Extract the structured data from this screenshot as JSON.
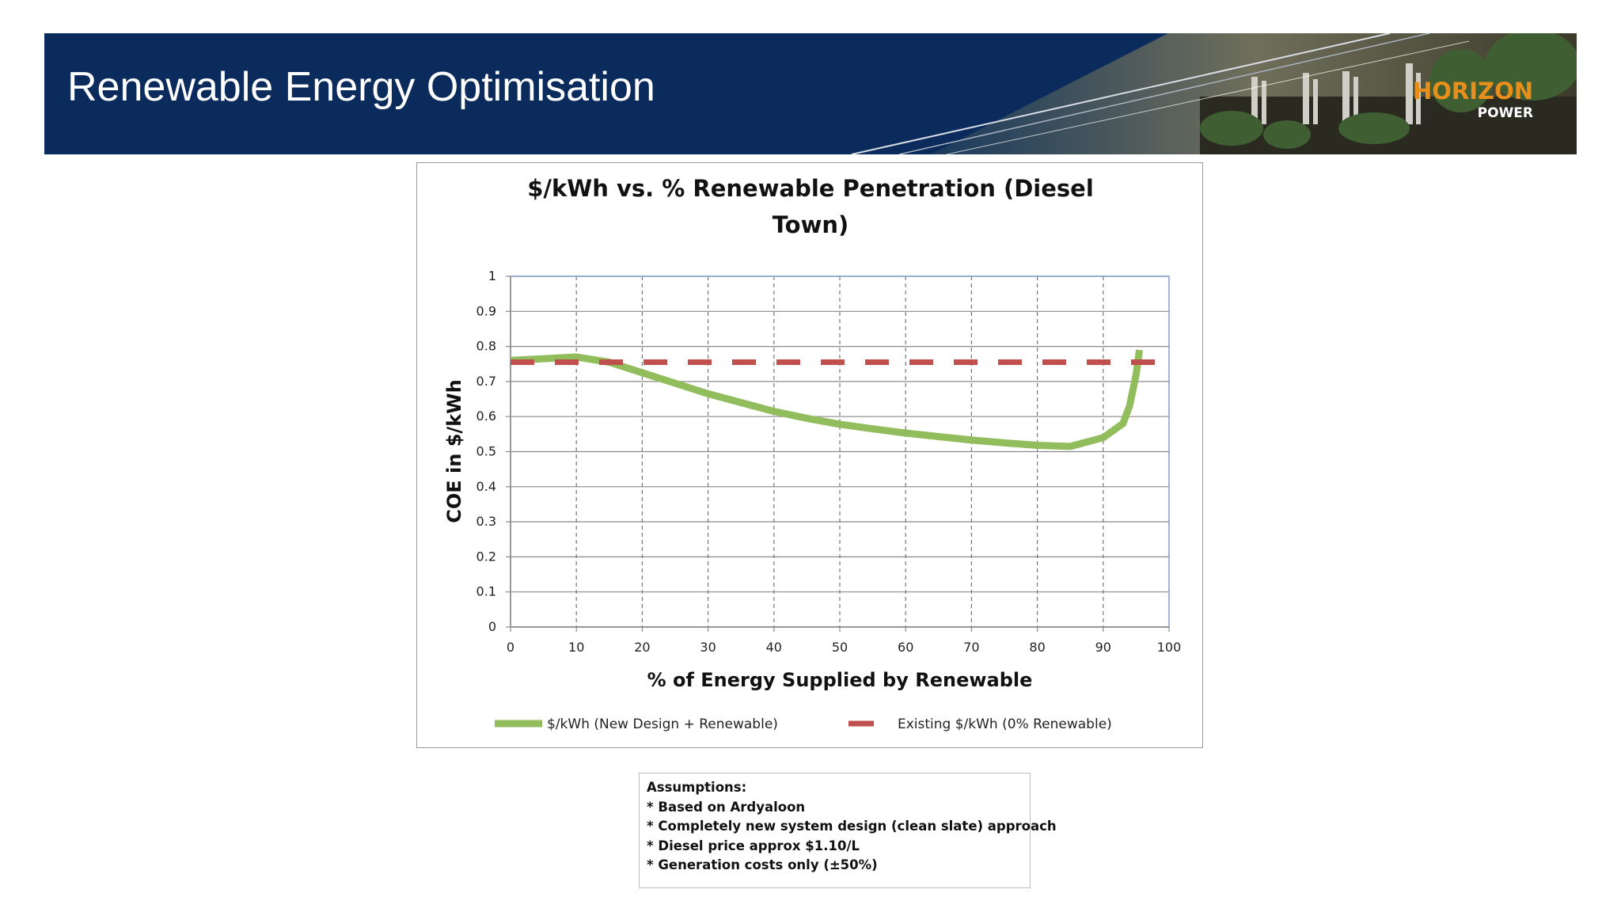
{
  "header": {
    "title": "Renewable Energy Optimisation",
    "logo_main": "HORIZON",
    "logo_sub": "POWER",
    "background_color": "#0a2b5c",
    "logo_color": "#e88f1b"
  },
  "chart_data": {
    "type": "line",
    "title_lines": [
      "$/kWh vs. % Renewable Penetration (Diesel",
      "Town)"
    ],
    "xlabel": "% of Energy Supplied by Renewable",
    "ylabel": "COE in $/kWh",
    "xlim": [
      0,
      100
    ],
    "ylim": [
      0,
      1
    ],
    "x_ticks": [
      "0",
      "10",
      "20",
      "30",
      "40",
      "50",
      "60",
      "70",
      "80",
      "90",
      "100"
    ],
    "y_ticks": [
      "0",
      "0.1",
      "0.2",
      "0.3",
      "0.4",
      "0.5",
      "0.6",
      "0.7",
      "0.8",
      "0.9",
      "1"
    ],
    "grid": {
      "horizontal": "solid",
      "vertical": "dashed"
    },
    "legend_position": "bottom",
    "series": [
      {
        "name": "$/kWh (New Design + Renewable)",
        "style": "solid",
        "color": "#92bd5d",
        "x": [
          0,
          5,
          10,
          15,
          20,
          25,
          30,
          35,
          40,
          45,
          50,
          55,
          60,
          65,
          70,
          75,
          80,
          85,
          90,
          93,
          94,
          95,
          95.5
        ],
        "y": [
          0.76,
          0.765,
          0.77,
          0.755,
          0.725,
          0.695,
          0.665,
          0.64,
          0.615,
          0.595,
          0.578,
          0.565,
          0.553,
          0.543,
          0.533,
          0.525,
          0.518,
          0.515,
          0.54,
          0.58,
          0.63,
          0.72,
          0.79
        ]
      },
      {
        "name": "Existing $/kWh (0% Renewable)",
        "style": "dashed",
        "color": "#c0504d",
        "x": [
          0,
          98
        ],
        "y": [
          0.755,
          0.755
        ]
      }
    ]
  },
  "assumptions": {
    "heading": "Assumptions:",
    "items": [
      "* Based on Ardyaloon",
      "* Completely new system design (clean slate) approach",
      "* Diesel price approx $1.10/L",
      "* Generation costs only (±50%)"
    ]
  }
}
